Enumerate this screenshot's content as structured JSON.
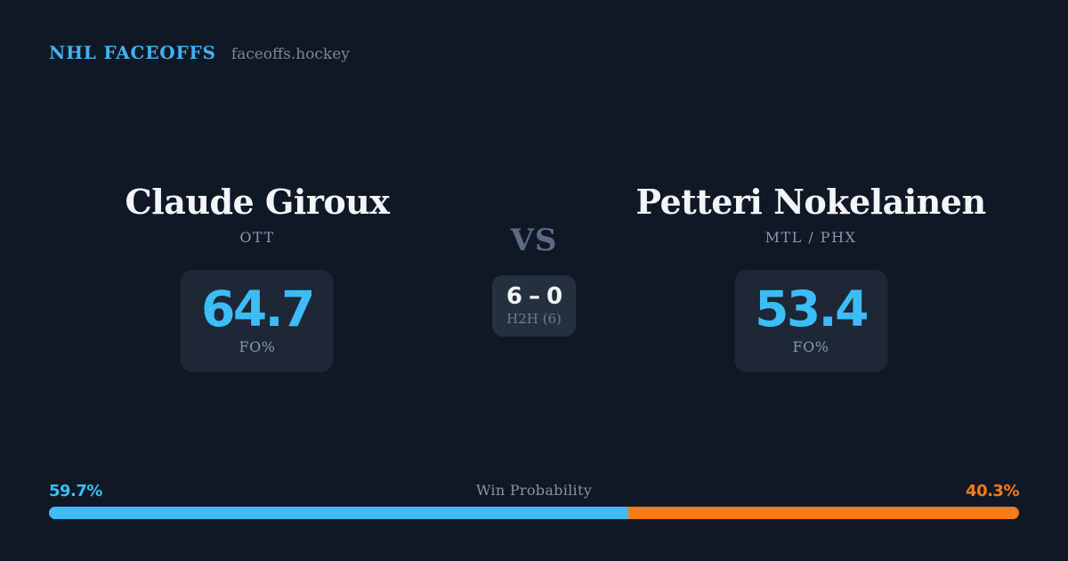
{
  "colors": {
    "background": "#101826",
    "card": "#1d2735",
    "card_h2h": "#25303f",
    "brand_blue": "#43b2ee",
    "accent_blue": "#3cbdf8",
    "accent_orange": "#f97b17",
    "text_primary": "#f3f5f9",
    "text_muted": "#8a97ad",
    "text_faint": "#5c6a83",
    "h2h_gray": "#6d7a90",
    "site_gray": "#7c8496",
    "wp_title_gray": "#8a93a4"
  },
  "header": {
    "brand": "NHL FACEOFFS",
    "site": "faceoffs.hockey"
  },
  "matchup": {
    "vs_label": "VS",
    "h2h": {
      "score": "6 – 0",
      "label": "H2H (6)"
    },
    "players": [
      {
        "name": "Claude Giroux",
        "teams": "OTT",
        "fo_pct": "64.7",
        "stat_label": "FO%"
      },
      {
        "name": "Petteri Nokelainen",
        "teams": "MTL / PHX",
        "fo_pct": "53.4",
        "stat_label": "FO%"
      }
    ]
  },
  "win_probability": {
    "title": "Win Probability",
    "left_pct": "59.7%",
    "right_pct": "40.3%",
    "left_value": 59.7,
    "right_value": 40.3
  },
  "chart_data": {
    "type": "bar",
    "title": "Win Probability",
    "categories": [
      "Claude Giroux (OTT)",
      "Petteri Nokelainen (MTL / PHX)"
    ],
    "series": [
      {
        "name": "Win Probability %",
        "values": [
          59.7,
          40.3
        ]
      },
      {
        "name": "Faceoff %",
        "values": [
          64.7,
          53.4
        ]
      },
      {
        "name": "Head-to-head wins (6 meetings)",
        "values": [
          6,
          0
        ]
      }
    ],
    "layout": "single horizontal stacked bar, blue left segment vs orange right segment",
    "xlim": [
      0,
      100
    ],
    "colors": {
      "left_segment": "#3cbdf8",
      "right_segment": "#f97b17"
    }
  }
}
